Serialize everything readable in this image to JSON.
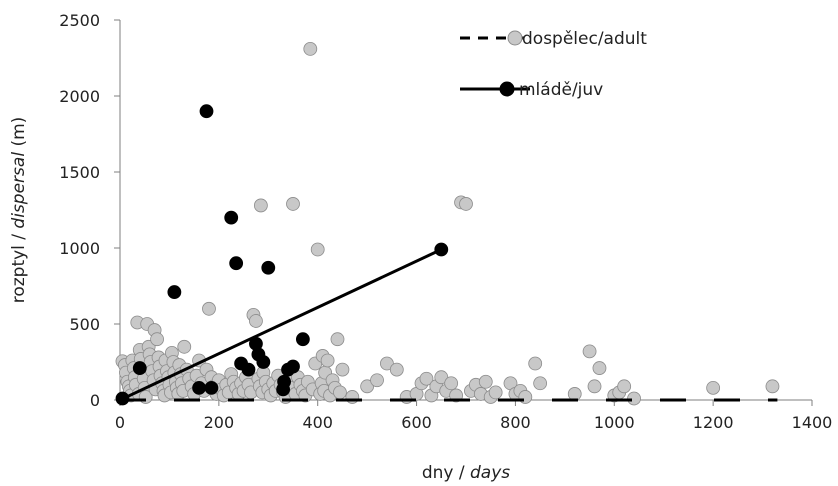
{
  "chart_data": {
    "type": "scatter",
    "title": "",
    "xlabel": {
      "plain": "dny / ",
      "italic": "days"
    },
    "ylabel": {
      "plain": "rozptyl / ",
      "italic": "dispersal",
      "suffix": " (m)"
    },
    "xlim": [
      0,
      1400
    ],
    "ylim": [
      0,
      2500
    ],
    "x_ticks": [
      "0",
      "200",
      "400",
      "600",
      "800",
      "1000",
      "1200",
      "1400"
    ],
    "y_ticks": [
      "0",
      "500",
      "1000",
      "1500",
      "2000",
      "2500"
    ],
    "grid": false,
    "legend_position": "top-right",
    "series": [
      {
        "name": "dospělec/adult",
        "marker_color": "#c8c8c8",
        "marker_edge": "#8c8c8c",
        "trendline": {
          "style": "dashed",
          "from": [
            0,
            0
          ],
          "to": [
            1330,
            0
          ]
        },
        "points": [
          [
            5,
            255
          ],
          [
            10,
            230
          ],
          [
            12,
            180
          ],
          [
            15,
            120
          ],
          [
            18,
            90
          ],
          [
            20,
            60
          ],
          [
            22,
            30
          ],
          [
            25,
            260
          ],
          [
            28,
            210
          ],
          [
            30,
            150
          ],
          [
            32,
            100
          ],
          [
            35,
            510
          ],
          [
            38,
            40
          ],
          [
            40,
            330
          ],
          [
            42,
            270
          ],
          [
            45,
            200
          ],
          [
            48,
            140
          ],
          [
            50,
            80
          ],
          [
            52,
            20
          ],
          [
            55,
            500
          ],
          [
            58,
            350
          ],
          [
            60,
            300
          ],
          [
            62,
            250
          ],
          [
            65,
            190
          ],
          [
            68,
            130
          ],
          [
            70,
            460
          ],
          [
            72,
            70
          ],
          [
            75,
            400
          ],
          [
            78,
            280
          ],
          [
            80,
            220
          ],
          [
            82,
            160
          ],
          [
            85,
            110
          ],
          [
            88,
            60
          ],
          [
            90,
            30
          ],
          [
            92,
            260
          ],
          [
            95,
            190
          ],
          [
            98,
            150
          ],
          [
            100,
            100
          ],
          [
            103,
            50
          ],
          [
            105,
            310
          ],
          [
            108,
            250
          ],
          [
            110,
            180
          ],
          [
            113,
            120
          ],
          [
            115,
            80
          ],
          [
            118,
            40
          ],
          [
            120,
            230
          ],
          [
            123,
            170
          ],
          [
            125,
            110
          ],
          [
            128,
            60
          ],
          [
            130,
            350
          ],
          [
            135,
            200
          ],
          [
            140,
            140
          ],
          [
            145,
            90
          ],
          [
            150,
            40
          ],
          [
            155,
            160
          ],
          [
            160,
            260
          ],
          [
            165,
            110
          ],
          [
            170,
            60
          ],
          [
            175,
            200
          ],
          [
            180,
            600
          ],
          [
            185,
            150
          ],
          [
            190,
            90
          ],
          [
            195,
            40
          ],
          [
            200,
            130
          ],
          [
            205,
            70
          ],
          [
            210,
            30
          ],
          [
            215,
            100
          ],
          [
            220,
            50
          ],
          [
            225,
            170
          ],
          [
            230,
            120
          ],
          [
            235,
            80
          ],
          [
            240,
            40
          ],
          [
            245,
            110
          ],
          [
            250,
            60
          ],
          [
            255,
            150
          ],
          [
            260,
            100
          ],
          [
            265,
            50
          ],
          [
            270,
            560
          ],
          [
            275,
            520
          ],
          [
            280,
            140
          ],
          [
            283,
            90
          ],
          [
            285,
            1280
          ],
          [
            288,
            50
          ],
          [
            290,
            180
          ],
          [
            295,
            120
          ],
          [
            300,
            70
          ],
          [
            305,
            30
          ],
          [
            310,
            110
          ],
          [
            315,
            60
          ],
          [
            320,
            160
          ],
          [
            325,
            100
          ],
          [
            330,
            50
          ],
          [
            335,
            20
          ],
          [
            340,
            130
          ],
          [
            345,
            80
          ],
          [
            350,
            1290
          ],
          [
            355,
            40
          ],
          [
            360,
            150
          ],
          [
            365,
            100
          ],
          [
            370,
            60
          ],
          [
            375,
            30
          ],
          [
            380,
            120
          ],
          [
            385,
            2310
          ],
          [
            390,
            70
          ],
          [
            395,
            240
          ],
          [
            400,
            990
          ],
          [
            405,
            40
          ],
          [
            408,
            110
          ],
          [
            410,
            290
          ],
          [
            413,
            60
          ],
          [
            415,
            180
          ],
          [
            420,
            260
          ],
          [
            425,
            30
          ],
          [
            430,
            130
          ],
          [
            435,
            80
          ],
          [
            440,
            400
          ],
          [
            445,
            50
          ],
          [
            450,
            200
          ],
          [
            470,
            20
          ],
          [
            500,
            90
          ],
          [
            520,
            130
          ],
          [
            540,
            240
          ],
          [
            560,
            200
          ],
          [
            580,
            20
          ],
          [
            600,
            40
          ],
          [
            610,
            110
          ],
          [
            620,
            140
          ],
          [
            630,
            30
          ],
          [
            640,
            90
          ],
          [
            650,
            150
          ],
          [
            660,
            60
          ],
          [
            670,
            110
          ],
          [
            680,
            30
          ],
          [
            690,
            1300
          ],
          [
            700,
            1290
          ],
          [
            710,
            60
          ],
          [
            720,
            100
          ],
          [
            730,
            40
          ],
          [
            740,
            120
          ],
          [
            750,
            20
          ],
          [
            760,
            50
          ],
          [
            790,
            110
          ],
          [
            800,
            40
          ],
          [
            810,
            60
          ],
          [
            820,
            20
          ],
          [
            840,
            240
          ],
          [
            850,
            110
          ],
          [
            920,
            40
          ],
          [
            950,
            320
          ],
          [
            960,
            90
          ],
          [
            970,
            210
          ],
          [
            1000,
            30
          ],
          [
            1010,
            50
          ],
          [
            1020,
            90
          ],
          [
            1040,
            10
          ],
          [
            1200,
            80
          ],
          [
            1320,
            90
          ]
        ]
      },
      {
        "name": "mládě/juv",
        "marker_color": "#000000",
        "marker_edge": "#000000",
        "trendline": {
          "style": "solid",
          "from": [
            0,
            0
          ],
          "to": [
            650,
            990
          ]
        },
        "points": [
          [
            5,
            10
          ],
          [
            40,
            210
          ],
          [
            110,
            710
          ],
          [
            160,
            80
          ],
          [
            175,
            1900
          ],
          [
            185,
            80
          ],
          [
            225,
            1200
          ],
          [
            235,
            900
          ],
          [
            245,
            240
          ],
          [
            260,
            200
          ],
          [
            275,
            370
          ],
          [
            280,
            300
          ],
          [
            290,
            250
          ],
          [
            300,
            870
          ],
          [
            330,
            70
          ],
          [
            332,
            120
          ],
          [
            340,
            200
          ],
          [
            350,
            220
          ],
          [
            370,
            400
          ],
          [
            650,
            990
          ]
        ]
      }
    ]
  }
}
